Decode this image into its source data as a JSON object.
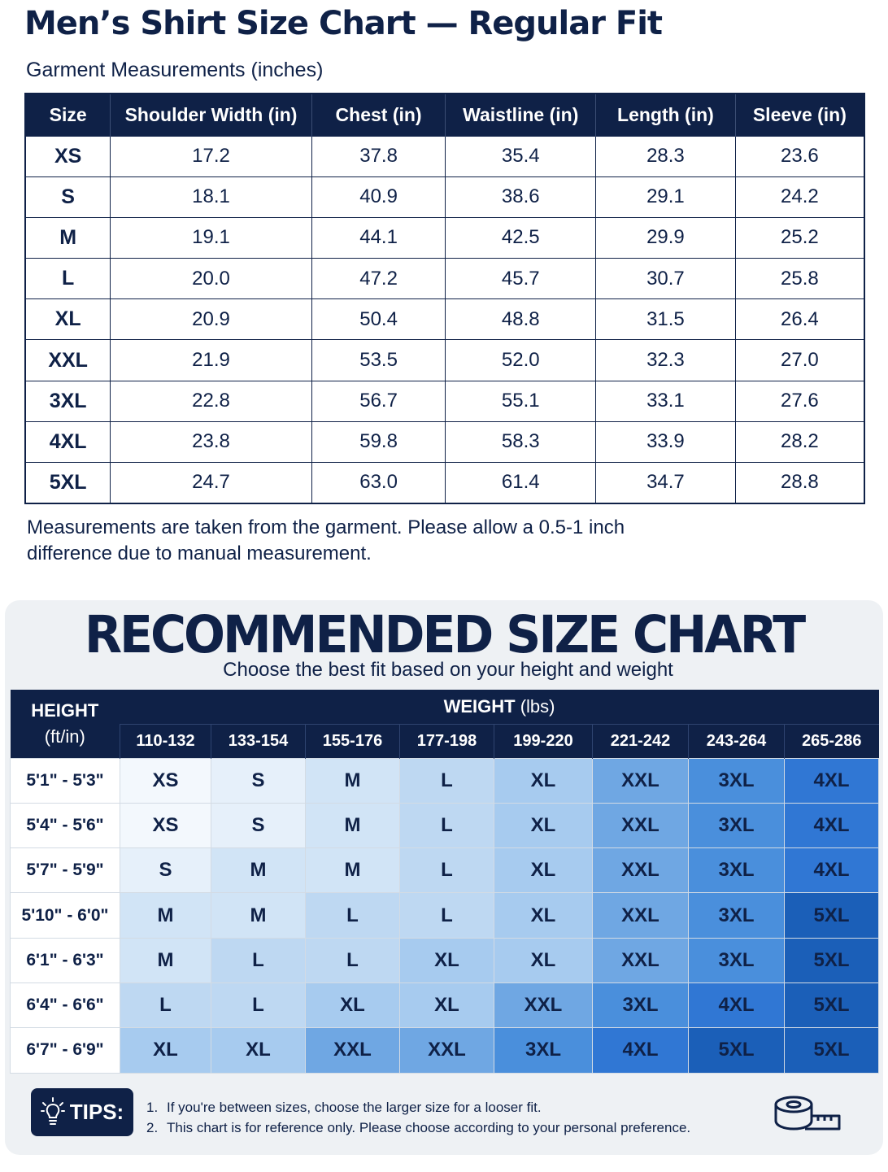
{
  "title": "Men’s Shirt Size Chart — Regular Fit",
  "garment": {
    "subtitle": "Garment Measurements (inches)",
    "columns": [
      "Size",
      "Shoulder Width (in)",
      "Chest (in)",
      "Waistline (in)",
      "Length (in)",
      "Sleeve (in)"
    ],
    "rows": [
      [
        "XS",
        "17.2",
        "37.8",
        "35.4",
        "28.3",
        "23.6"
      ],
      [
        "S",
        "18.1",
        "40.9",
        "38.6",
        "29.1",
        "24.2"
      ],
      [
        "M",
        "19.1",
        "44.1",
        "42.5",
        "29.9",
        "25.2"
      ],
      [
        "L",
        "20.0",
        "47.2",
        "45.7",
        "30.7",
        "25.8"
      ],
      [
        "XL",
        "20.9",
        "50.4",
        "48.8",
        "31.5",
        "26.4"
      ],
      [
        "XXL",
        "21.9",
        "53.5",
        "52.0",
        "32.3",
        "27.0"
      ],
      [
        "3XL",
        "22.8",
        "56.7",
        "55.1",
        "33.1",
        "27.6"
      ],
      [
        "4XL",
        "23.8",
        "59.8",
        "58.3",
        "33.9",
        "28.2"
      ],
      [
        "5XL",
        "24.7",
        "63.0",
        "61.4",
        "34.7",
        "28.8"
      ]
    ],
    "note": "Measurements are taken from the garment. Please allow a 0.5-1 inch difference due to manual measurement."
  },
  "recommended": {
    "title": "RECOMMENDED SIZE CHART",
    "subtitle": "Choose the best fit based on your height and weight",
    "height_header_line1": "HEIGHT",
    "height_header_line2": "(ft/in)",
    "weight_header": "WEIGHT",
    "weight_unit": "(lbs)",
    "weights": [
      "110-132",
      "133-154",
      "155-176",
      "177-198",
      "199-220",
      "221-242",
      "243-264",
      "265-286"
    ],
    "rows": [
      {
        "height": "5'1\" - 5'3\"",
        "sizes": [
          "XS",
          "S",
          "M",
          "L",
          "XL",
          "XXL",
          "3XL",
          "4XL"
        ]
      },
      {
        "height": "5'4\" - 5'6\"",
        "sizes": [
          "XS",
          "S",
          "M",
          "L",
          "XL",
          "XXL",
          "3XL",
          "4XL"
        ]
      },
      {
        "height": "5'7\" - 5'9\"",
        "sizes": [
          "S",
          "M",
          "M",
          "L",
          "XL",
          "XXL",
          "3XL",
          "4XL"
        ]
      },
      {
        "height": "5'10\" - 6'0\"",
        "sizes": [
          "M",
          "M",
          "L",
          "L",
          "XL",
          "XXL",
          "3XL",
          "5XL"
        ]
      },
      {
        "height": "6'1\" - 6'3\"",
        "sizes": [
          "M",
          "L",
          "L",
          "XL",
          "XL",
          "XXL",
          "3XL",
          "5XL"
        ]
      },
      {
        "height": "6'4\" - 6'6\"",
        "sizes": [
          "L",
          "L",
          "XL",
          "XL",
          "XXL",
          "3XL",
          "4XL",
          "5XL"
        ]
      },
      {
        "height": "6'7\" - 6'9\"",
        "sizes": [
          "XL",
          "XL",
          "XXL",
          "XXL",
          "3XL",
          "4XL",
          "5XL",
          "5XL"
        ]
      }
    ],
    "size_colors": {
      "XS": "#f3f8fd",
      "S": "#e6f0fa",
      "M": "#d1e4f6",
      "L": "#bed8f2",
      "XL": "#a7cbef",
      "XXL": "#6fa7e3",
      "3XL": "#4a8fdc",
      "4XL": "#3077d4",
      "5XL": "#1b5fb8"
    }
  },
  "tips": {
    "label": "TIPS:",
    "icon": "lightbulb-icon",
    "items": [
      "If you're between sizes, choose the larger size for a looser fit.",
      "This chart is for reference only. Please choose according to your personal preference."
    ]
  },
  "decor_icon": "measuring-tape-icon"
}
